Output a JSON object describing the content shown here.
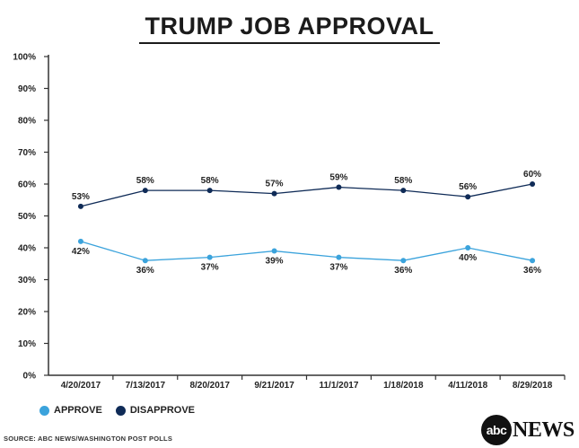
{
  "title": "TRUMP JOB APPROVAL",
  "source": "SOURCE: ABC NEWS/WASHINGTON POST POLLS",
  "logo": {
    "circle_text": "abc",
    "word": "NEWS"
  },
  "legend": [
    {
      "label": "APPROVE",
      "color": "#3ba3dc"
    },
    {
      "label": "DISAPPROVE",
      "color": "#0f2b57"
    }
  ],
  "chart_data": {
    "type": "line",
    "title": "TRUMP JOB APPROVAL",
    "categories": [
      "4/20/2017",
      "7/13/2017",
      "8/20/2017",
      "9/21/2017",
      "11/1/2017",
      "1/18/2018",
      "4/11/2018",
      "8/29/2018"
    ],
    "series": [
      {
        "name": "APPROVE",
        "color": "#3ba3dc",
        "values": [
          42,
          36,
          37,
          39,
          37,
          36,
          40,
          36
        ]
      },
      {
        "name": "DISAPPROVE",
        "color": "#0f2b57",
        "values": [
          53,
          58,
          58,
          57,
          59,
          58,
          56,
          60
        ]
      }
    ],
    "y_ticks": [
      "0%",
      "10%",
      "20%",
      "30%",
      "40%",
      "50%",
      "60%",
      "70%",
      "80%",
      "90%",
      "100%"
    ],
    "ylim": [
      0,
      100
    ],
    "grid": false,
    "legend_position": "bottom-left",
    "xlabel": "",
    "ylabel": ""
  }
}
